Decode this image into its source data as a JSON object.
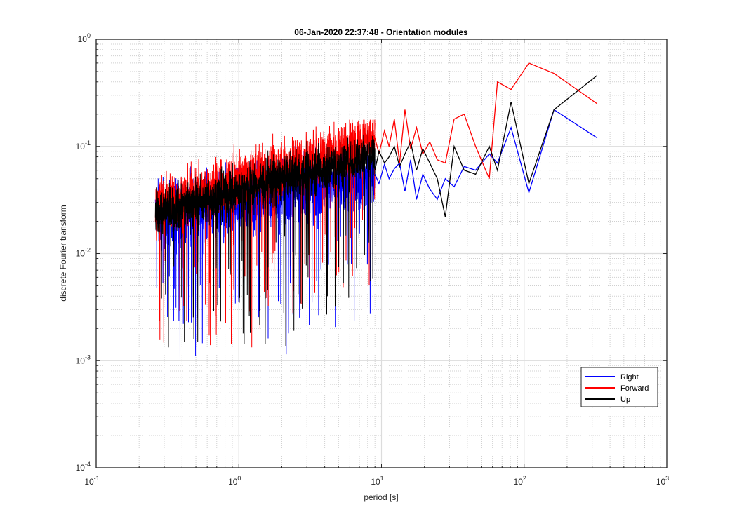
{
  "chart_data": {
    "type": "line",
    "title": "06-Jan-2020 22:37:48 - Orientation modules",
    "xlabel": "period [s]",
    "ylabel": "discrete Fourier transform",
    "xscale": "log",
    "yscale": "log",
    "xlim": [
      0.1,
      1000
    ],
    "ylim": [
      0.0001,
      1
    ],
    "x_ticks": [
      {
        "value": 0.1,
        "base": "10",
        "exp": "-1"
      },
      {
        "value": 1,
        "base": "10",
        "exp": "0"
      },
      {
        "value": 10,
        "base": "10",
        "exp": "1"
      },
      {
        "value": 100,
        "base": "10",
        "exp": "2"
      },
      {
        "value": 1000,
        "base": "10",
        "exp": "3"
      }
    ],
    "y_ticks": [
      {
        "value": 0.0001,
        "base": "10",
        "exp": "-4"
      },
      {
        "value": 0.001,
        "base": "10",
        "exp": "-3"
      },
      {
        "value": 0.01,
        "base": "10",
        "exp": "-2"
      },
      {
        "value": 0.1,
        "base": "10",
        "exp": "-1"
      },
      {
        "value": 1,
        "base": "10",
        "exp": "0"
      }
    ],
    "grid": true,
    "minor_grid": true,
    "legend_position": "bottom-right",
    "series": [
      {
        "name": "Right",
        "color": "#0000ff",
        "x": [
          9.0,
          9.6,
          10.5,
          11.3,
          12.3,
          13.4,
          14.6,
          16.0,
          17.6,
          19.5,
          21.8,
          24.6,
          28.0,
          32.3,
          38.0,
          45.7,
          57.0,
          65.0,
          81.0,
          108.0,
          162.0,
          325.0
        ],
        "y": [
          0.055,
          0.045,
          0.068,
          0.05,
          0.062,
          0.07,
          0.038,
          0.075,
          0.032,
          0.055,
          0.04,
          0.032,
          0.05,
          0.042,
          0.065,
          0.06,
          0.085,
          0.07,
          0.15,
          0.037,
          0.22,
          0.12
        ]
      },
      {
        "name": "Forward",
        "color": "#ff0000",
        "x": [
          9.0,
          9.6,
          10.5,
          11.3,
          12.3,
          13.4,
          14.6,
          16.0,
          17.6,
          19.5,
          21.8,
          24.6,
          28.0,
          32.3,
          38.0,
          45.7,
          57.0,
          65.0,
          81.0,
          108.0,
          162.0,
          325.0
        ],
        "y": [
          0.12,
          0.085,
          0.14,
          0.1,
          0.18,
          0.07,
          0.22,
          0.095,
          0.15,
          0.085,
          0.11,
          0.075,
          0.07,
          0.18,
          0.2,
          0.1,
          0.05,
          0.4,
          0.34,
          0.6,
          0.48,
          0.25
        ]
      },
      {
        "name": "Up",
        "color": "#000000",
        "x": [
          9.0,
          9.6,
          10.5,
          11.3,
          12.3,
          13.4,
          14.6,
          16.0,
          17.6,
          19.5,
          21.8,
          24.6,
          28.0,
          32.3,
          38.0,
          45.7,
          57.0,
          65.0,
          81.0,
          108.0,
          162.0,
          325.0
        ],
        "y": [
          0.06,
          0.09,
          0.07,
          0.08,
          0.1,
          0.065,
          0.085,
          0.11,
          0.06,
          0.095,
          0.07,
          0.05,
          0.022,
          0.1,
          0.06,
          0.055,
          0.1,
          0.06,
          0.26,
          0.045,
          0.22,
          0.46
        ]
      }
    ]
  }
}
